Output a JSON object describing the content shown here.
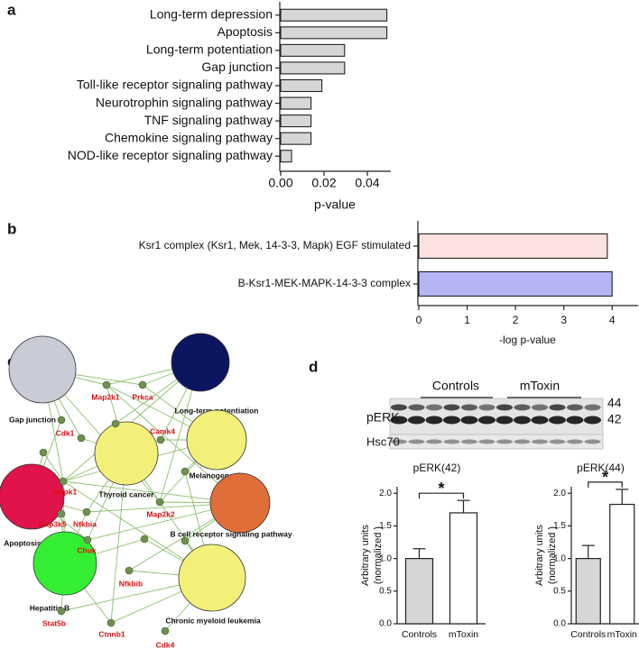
{
  "panels": [
    "a",
    "b",
    "c",
    "d"
  ],
  "chart_data": [
    {
      "type": "bar",
      "orientation": "horizontal",
      "categories": [
        "Long-term depression",
        "Apoptosis",
        "Long-term potentiation",
        "Gap junction",
        "Toll-like receptor signaling pathway",
        "Neurotrophin signaling pathway",
        "TNF signaling pathway",
        "Chemokine signaling pathway",
        "NOD-like receptor signaling pathway"
      ],
      "values": [
        0.049,
        0.049,
        0.0295,
        0.0295,
        0.019,
        0.014,
        0.014,
        0.014,
        0.005
      ],
      "color": "#d6d6d6",
      "xlabel": "p-value",
      "xlim": [
        0,
        0.05
      ],
      "xticks": [
        {
          "value": 0,
          "label": "0.00"
        },
        {
          "value": 0.02,
          "label": "0.02"
        },
        {
          "value": 0.04,
          "label": "0.04"
        }
      ]
    },
    {
      "type": "bar",
      "orientation": "horizontal",
      "categories": [
        "Ksr1 complex (Ksr1, Mek,  14-3-3,  Mapk)  EGF stimulated",
        "B-Ksr1-MEK-MAPK-14-3-3 complex"
      ],
      "values": [
        3.9,
        4.0
      ],
      "colors": [
        "#fde1e1",
        "#b5b5f5"
      ],
      "xlabel": "-log p-value",
      "xlim": [
        0,
        4.5
      ],
      "xticks": [
        0,
        1,
        2,
        3,
        4
      ]
    },
    {
      "type": "bar",
      "title": "pERK(42)",
      "ylabel": [
        "Arbitrary units",
        "(normalized )"
      ],
      "categories": [
        "Controls",
        "mToxin"
      ],
      "values": [
        1.0,
        1.7
      ],
      "errors": [
        0.15,
        0.19
      ],
      "colors": [
        "#d6d6d6",
        "#ffffff"
      ],
      "significance": "*",
      "ylim": [
        0,
        2.1
      ],
      "yticks": [
        {
          "value": 0,
          "label": "0.0"
        },
        {
          "value": 0.5,
          "label": "0.5"
        },
        {
          "value": 1,
          "label": "1.0"
        },
        {
          "value": 1.5,
          "label": "1.5"
        },
        {
          "value": 2,
          "label": "2.0"
        }
      ]
    },
    {
      "type": "bar",
      "title": "pERK(44)",
      "ylabel": [
        "Arbitrary units",
        "(normalized )"
      ],
      "categories": [
        "Controls",
        "mToxin"
      ],
      "values": [
        1.0,
        1.83
      ],
      "errors": [
        0.2,
        0.23
      ],
      "colors": [
        "#d6d6d6",
        "#ffffff"
      ],
      "significance": "*",
      "ylim": [
        0,
        2.1
      ],
      "yticks": [
        {
          "value": 0,
          "label": "0.0"
        },
        {
          "value": 0.5,
          "label": "0.5"
        },
        {
          "value": 1,
          "label": "1.0"
        },
        {
          "value": 1.5,
          "label": "1.5"
        },
        {
          "value": 2,
          "label": "2.0"
        }
      ]
    }
  ],
  "network": {
    "pathways": [
      {
        "label": "Gap junction",
        "color": "#c9cbd6"
      },
      {
        "label": "Long-term potentiation",
        "color": "#0b1560"
      },
      {
        "label": "Thyroid cancer",
        "color": "#f3f07a"
      },
      {
        "label": "Melanogenesis",
        "color": "#f3f07a"
      },
      {
        "label": "Apoptosis",
        "color": "#e0134a"
      },
      {
        "label": "B cell receptor signaling pathway",
        "color": "#e06e38"
      },
      {
        "label": "Hepatitis B",
        "color": "#33ee33"
      },
      {
        "label": "Chronic myeloid leukemia",
        "color": "#f3f07a"
      }
    ],
    "genes": [
      "Cdk1",
      "Map2k1",
      "Prkca",
      "Camk4",
      "Mapk1",
      "Map3k5",
      "Nfkbia",
      "Map2k2",
      "Chuk",
      "Nfkbib",
      "Stat5b",
      "Ctnnb1",
      "Cdk4"
    ]
  },
  "blot": {
    "groups": [
      "Controls",
      "mToxin"
    ],
    "rows": [
      "pERK",
      "Hsc70"
    ],
    "bands": [
      "44",
      "42"
    ]
  }
}
